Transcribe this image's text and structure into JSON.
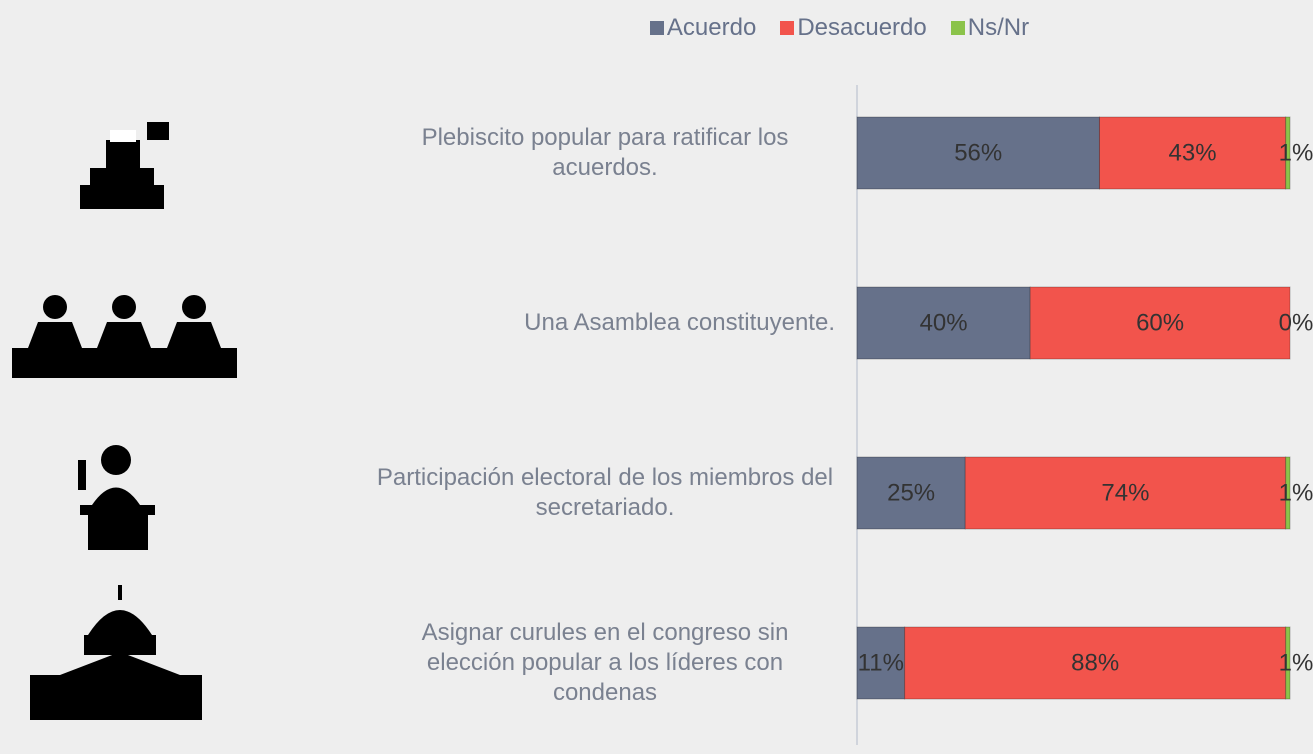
{
  "chart_data": {
    "type": "stacked-barh",
    "categories": [
      "Plebiscito popular para ratificar los acuerdos.",
      "Una Asamblea constituyente.",
      "Participación electoral de los miembros del secretariado.",
      "Asignar curules en el congreso sin elección popular a los líderes con condenas"
    ],
    "series": [
      {
        "name": "Acuerdo",
        "color": "#66718a",
        "values": [
          56,
          40,
          25,
          11
        ],
        "value_labels": [
          "56%",
          "40%",
          "25%",
          "11%"
        ]
      },
      {
        "name": "Desacuerdo",
        "color": "#f2544c",
        "values": [
          43,
          60,
          74,
          88
        ],
        "value_labels": [
          "43%",
          "60%",
          "74%",
          "88%"
        ]
      },
      {
        "name": "Ns/Nr",
        "color": "#8bc34a",
        "values": [
          1,
          0,
          1,
          1
        ],
        "value_labels": [
          "1%",
          "0%",
          "1%",
          "1%"
        ]
      }
    ],
    "xlim": [
      0,
      100
    ],
    "legend": "top"
  }
}
